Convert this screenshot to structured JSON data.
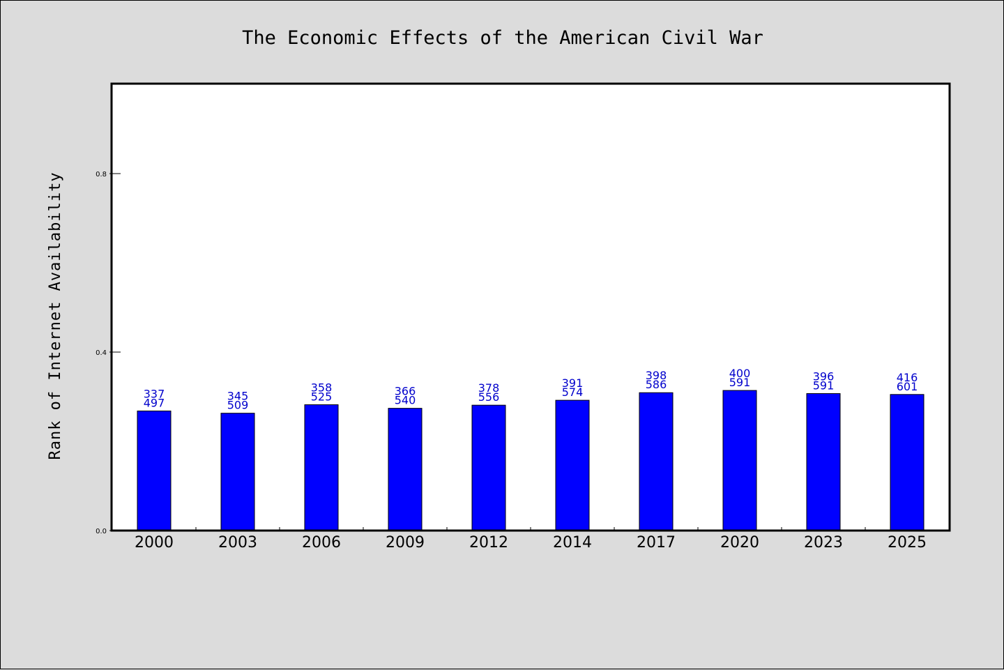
{
  "chart_data": {
    "type": "bar",
    "title": "The Economic Effects of the American Civil War",
    "xlabel": "",
    "ylabel": "Rank of Internet Availability",
    "ylim": [
      0,
      1.0
    ],
    "yticks": [
      "0.0",
      "0.4",
      "0.8"
    ],
    "ytick_values": [
      0.0,
      0.4,
      0.8
    ],
    "grid": false,
    "legend": "none",
    "bar_color": "#0000ff",
    "label_color": "#0000cc",
    "categories": [
      "2000",
      "2003",
      "2006",
      "2009",
      "2012",
      "2014",
      "2017",
      "2020",
      "2023",
      "2025"
    ],
    "values": [
      0.268,
      0.263,
      0.282,
      0.274,
      0.281,
      0.292,
      0.309,
      0.314,
      0.307,
      0.305
    ],
    "labels_top": [
      "337",
      "345",
      "358",
      "366",
      "378",
      "391",
      "398",
      "400",
      "396",
      "416"
    ],
    "labels_bottom": [
      "497",
      "509",
      "525",
      "540",
      "556",
      "574",
      "586",
      "591",
      "591",
      "601"
    ]
  }
}
